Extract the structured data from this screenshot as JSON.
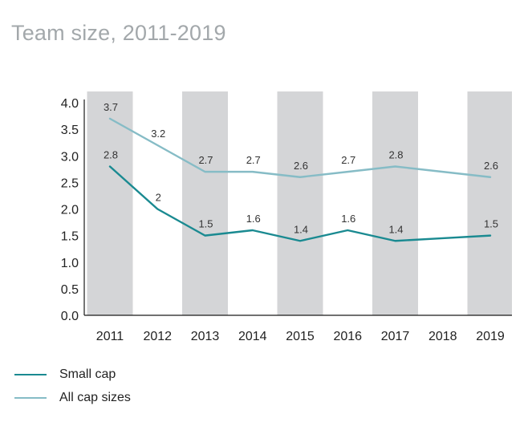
{
  "title": "Team size, 2011-2019",
  "colors": {
    "small_cap": "#1a8a91",
    "all_cap": "#86bcc6",
    "band": "#d4d5d7",
    "axis": "#1a1a1a"
  },
  "chart_data": {
    "type": "line",
    "title": "Team size, 2011-2019",
    "categories": [
      "2011",
      "2012",
      "2013",
      "2014",
      "2015",
      "2016",
      "2017",
      "2018",
      "2019"
    ],
    "ylim": [
      0,
      4.0
    ],
    "yticks": [
      "0.0",
      "0.5",
      "1.0",
      "1.5",
      "2.0",
      "2.5",
      "3.0",
      "3.5",
      "4.0"
    ],
    "grid": false,
    "legend_position": "bottom-left",
    "shaded_categories": [
      "2011",
      "2013",
      "2015",
      "2017",
      "2019"
    ],
    "series": [
      {
        "name": "Small cap",
        "values": [
          2.8,
          2.0,
          1.5,
          1.6,
          1.4,
          1.6,
          1.4,
          1.45,
          1.5
        ],
        "labels": [
          "2.8",
          "2",
          "1.5",
          "1.6",
          "1.4",
          "1.6",
          "1.4",
          "",
          "1.5"
        ]
      },
      {
        "name": "All cap sizes",
        "values": [
          3.7,
          3.2,
          2.7,
          2.7,
          2.6,
          2.7,
          2.8,
          2.7,
          2.6
        ],
        "labels": [
          "3.7",
          "3.2",
          "2.7",
          "2.7",
          "2.6",
          "2.7",
          "2.8",
          "",
          "2.6"
        ]
      }
    ]
  }
}
